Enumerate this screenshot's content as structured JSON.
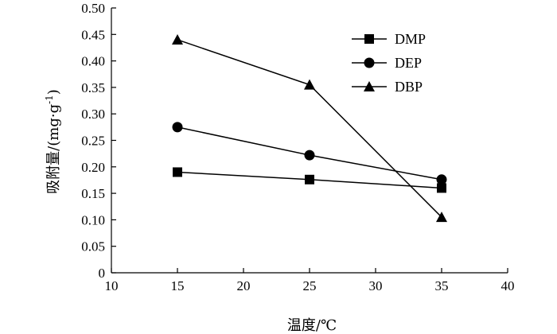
{
  "chart_data": {
    "type": "line",
    "xlabel": "温度/℃",
    "ylabel_main": "吸附量/(mg·g",
    "ylabel_sup": "-1",
    "ylabel_end": ")",
    "xlim": [
      10,
      40
    ],
    "ylim": [
      0,
      0.5
    ],
    "x_ticks": [
      "10",
      "15",
      "20",
      "25",
      "30",
      "35",
      "40"
    ],
    "y_ticks": [
      "0",
      "0.05",
      "0.10",
      "0.15",
      "0.20",
      "0.25",
      "0.30",
      "0.35",
      "0.40",
      "0.45",
      "0.50"
    ],
    "x": [
      15,
      25,
      35
    ],
    "series": [
      {
        "name": "DMP",
        "marker": "square",
        "values": [
          0.19,
          0.176,
          0.16
        ]
      },
      {
        "name": "DEP",
        "marker": "circle",
        "values": [
          0.275,
          0.222,
          0.176
        ]
      },
      {
        "name": "DBP",
        "marker": "triangle",
        "values": [
          0.44,
          0.355,
          0.105
        ]
      }
    ],
    "grid": false,
    "legend_position": "top-right",
    "color": "#000000"
  }
}
